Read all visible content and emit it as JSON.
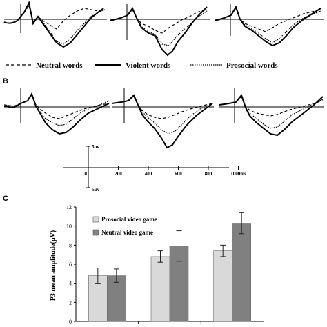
{
  "panel_labels": {
    "b": "B",
    "c": "C"
  },
  "legend": {
    "neutral": "Neutral words",
    "violent": "Violent words",
    "prosocial": "Prosocial words"
  },
  "scale": {
    "pos": "5uv",
    "neg": "-5uv",
    "x_ticks": [
      "0",
      "200",
      "400",
      "600",
      "800",
      "1000ms"
    ]
  },
  "chart_data": {
    "type": "bar",
    "title": "",
    "xlabel": "",
    "ylabel": "P3 mean amplitude(μV)",
    "ylim": [
      0,
      12
    ],
    "yticks": [
      "0",
      "2",
      "4",
      "6",
      "8",
      "10",
      "12"
    ],
    "categories": [
      "",
      "",
      ""
    ],
    "legend_position": "top-left",
    "series": [
      {
        "name": "Prosocial video game",
        "color": "#d9d9d9",
        "values": [
          4.8,
          6.8,
          7.4
        ],
        "errors": [
          0.8,
          0.6,
          0.6
        ]
      },
      {
        "name": "Neutral video game",
        "color": "#808080",
        "values": [
          4.8,
          7.9,
          10.3
        ],
        "errors": [
          0.7,
          1.6,
          1.1
        ]
      }
    ]
  }
}
